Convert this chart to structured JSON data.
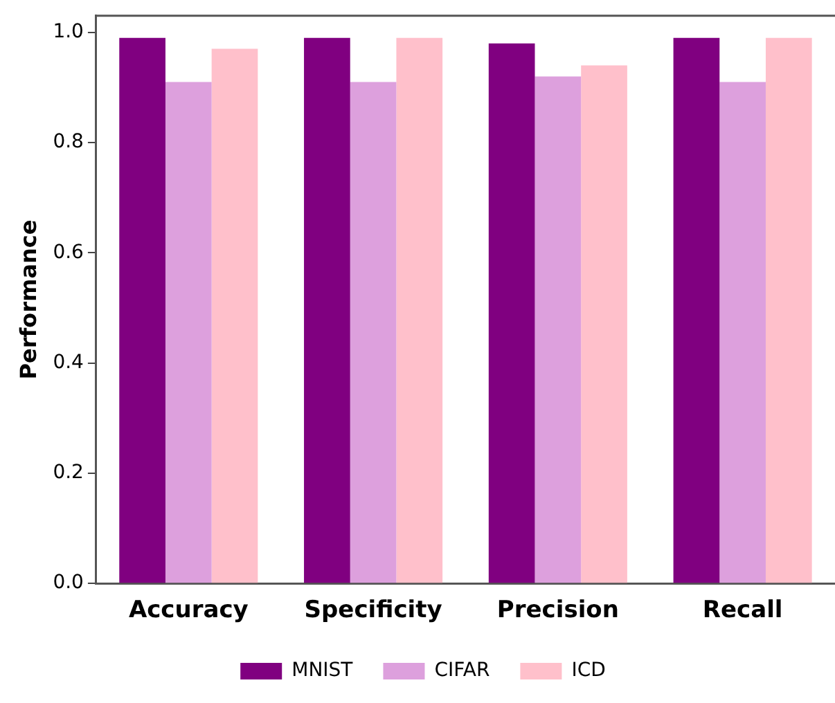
{
  "chart_data": {
    "type": "bar",
    "ylabel": "Performance",
    "categories": [
      "Accuracy",
      "Specificity",
      "Precision",
      "Recall"
    ],
    "series": [
      {
        "name": "MNIST",
        "color": "#800080",
        "values": [
          0.99,
          0.99,
          0.98,
          0.99
        ]
      },
      {
        "name": "CIFAR",
        "color": "#dda0dd",
        "values": [
          0.91,
          0.91,
          0.92,
          0.91
        ]
      },
      {
        "name": "ICD",
        "color": "#ffc0cb",
        "values": [
          0.97,
          0.99,
          0.94,
          0.99
        ]
      }
    ],
    "ylim": [
      0,
      1.03
    ],
    "yticks": [
      {
        "value": 0,
        "label": "0.0"
      },
      0.2,
      0.4,
      0.6,
      0.8,
      {
        "value": 1,
        "label": "1.0"
      }
    ],
    "grid": false,
    "legend": "bottom"
  }
}
